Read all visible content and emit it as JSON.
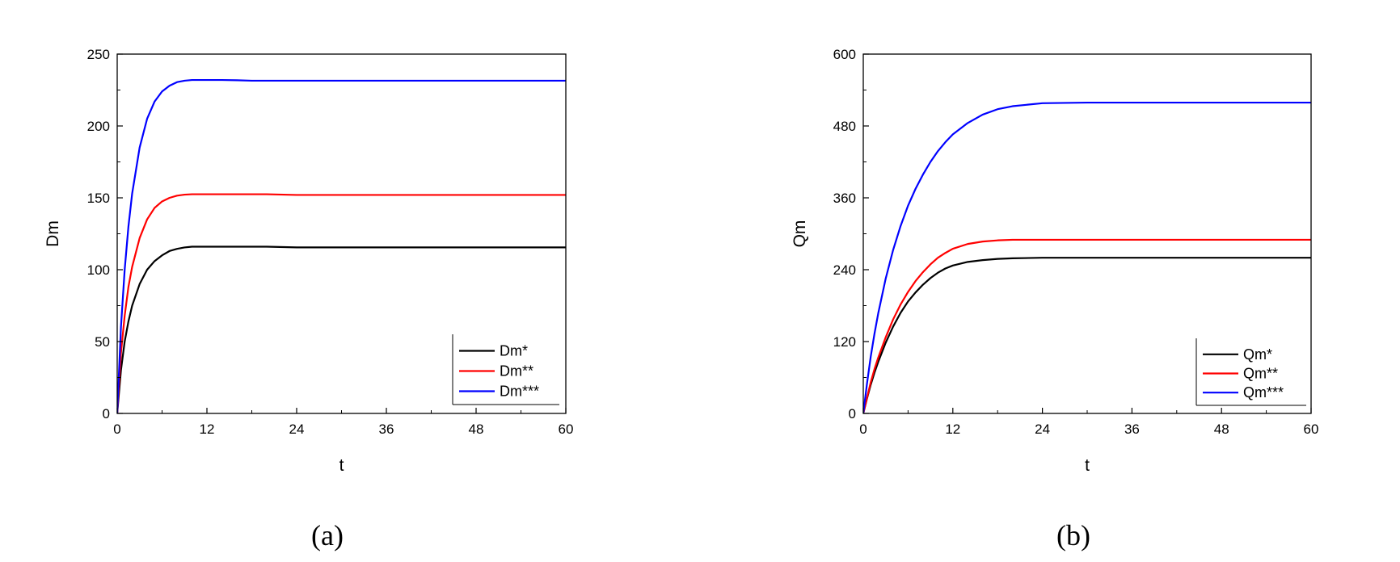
{
  "chart_data": [
    {
      "type": "line",
      "caption": "(a)",
      "xlabel": "t",
      "ylabel": "Dm",
      "xlim": [
        0,
        60
      ],
      "ylim": [
        0,
        250
      ],
      "xticks": [
        0,
        12,
        24,
        36,
        48,
        60
      ],
      "yticks": [
        0,
        50,
        100,
        150,
        200,
        250
      ],
      "grid": false,
      "legend_position": "bottom-right",
      "x": [
        0,
        0.5,
        1,
        1.5,
        2,
        3,
        4,
        5,
        6,
        7,
        8,
        9,
        10,
        11,
        12,
        14,
        16,
        18,
        20,
        24,
        30,
        36,
        42,
        48,
        54,
        60
      ],
      "series": [
        {
          "name": "Dm*",
          "color": "#000000",
          "values": [
            0,
            30,
            50,
            64,
            75,
            90,
            100,
            106,
            110,
            113,
            114.5,
            115.5,
            116,
            116,
            116,
            116,
            116,
            116,
            116,
            115.5,
            115.5,
            115.5,
            115.5,
            115.5,
            115.5,
            115.5
          ]
        },
        {
          "name": "Dm**",
          "color": "#ff0000",
          "values": [
            0,
            42,
            68,
            88,
            102,
            122,
            135,
            143,
            147.5,
            150,
            151.5,
            152.2,
            152.5,
            152.5,
            152.5,
            152.5,
            152.5,
            152.5,
            152.5,
            152,
            152,
            152,
            152,
            152,
            152,
            152
          ]
        },
        {
          "name": "Dm***",
          "color": "#0000ff",
          "values": [
            0,
            60,
            100,
            130,
            153,
            185,
            205,
            217,
            224,
            228,
            230.5,
            231.5,
            232,
            232,
            232,
            232,
            231.8,
            231.5,
            231.5,
            231.5,
            231.5,
            231.5,
            231.5,
            231.5,
            231.5,
            231.5
          ]
        }
      ]
    },
    {
      "type": "line",
      "caption": "(b)",
      "xlabel": "t",
      "ylabel": "Qm",
      "xlim": [
        0,
        60
      ],
      "ylim": [
        0,
        600
      ],
      "xticks": [
        0,
        12,
        24,
        36,
        48,
        60
      ],
      "yticks": [
        0,
        120,
        240,
        360,
        480,
        600
      ],
      "grid": false,
      "legend_position": "bottom-right",
      "x": [
        0,
        0.5,
        1,
        1.5,
        2,
        3,
        4,
        5,
        6,
        7,
        8,
        9,
        10,
        11,
        12,
        14,
        16,
        18,
        20,
        24,
        30,
        36,
        42,
        48,
        54,
        60
      ],
      "series": [
        {
          "name": "Qm*",
          "color": "#000000",
          "values": [
            0,
            25,
            48,
            68,
            86,
            118,
            145,
            168,
            187,
            202,
            215,
            226,
            235,
            242,
            247,
            253,
            256,
            258,
            259,
            260,
            260,
            260,
            260,
            260,
            260,
            260
          ]
        },
        {
          "name": "Qm**",
          "color": "#ff0000",
          "values": [
            0,
            26,
            52,
            74,
            93,
            127,
            157,
            182,
            203,
            221,
            236,
            249,
            260,
            268,
            275,
            283,
            287,
            289,
            290,
            290,
            290,
            290,
            290,
            290,
            290,
            290
          ]
        },
        {
          "name": "Qm***",
          "color": "#0000ff",
          "values": [
            0,
            50,
            95,
            133,
            167,
            225,
            273,
            313,
            347,
            375,
            399,
            420,
            438,
            453,
            466,
            485,
            499,
            508,
            513,
            518,
            519,
            519,
            519,
            519,
            519,
            519
          ]
        }
      ]
    }
  ]
}
